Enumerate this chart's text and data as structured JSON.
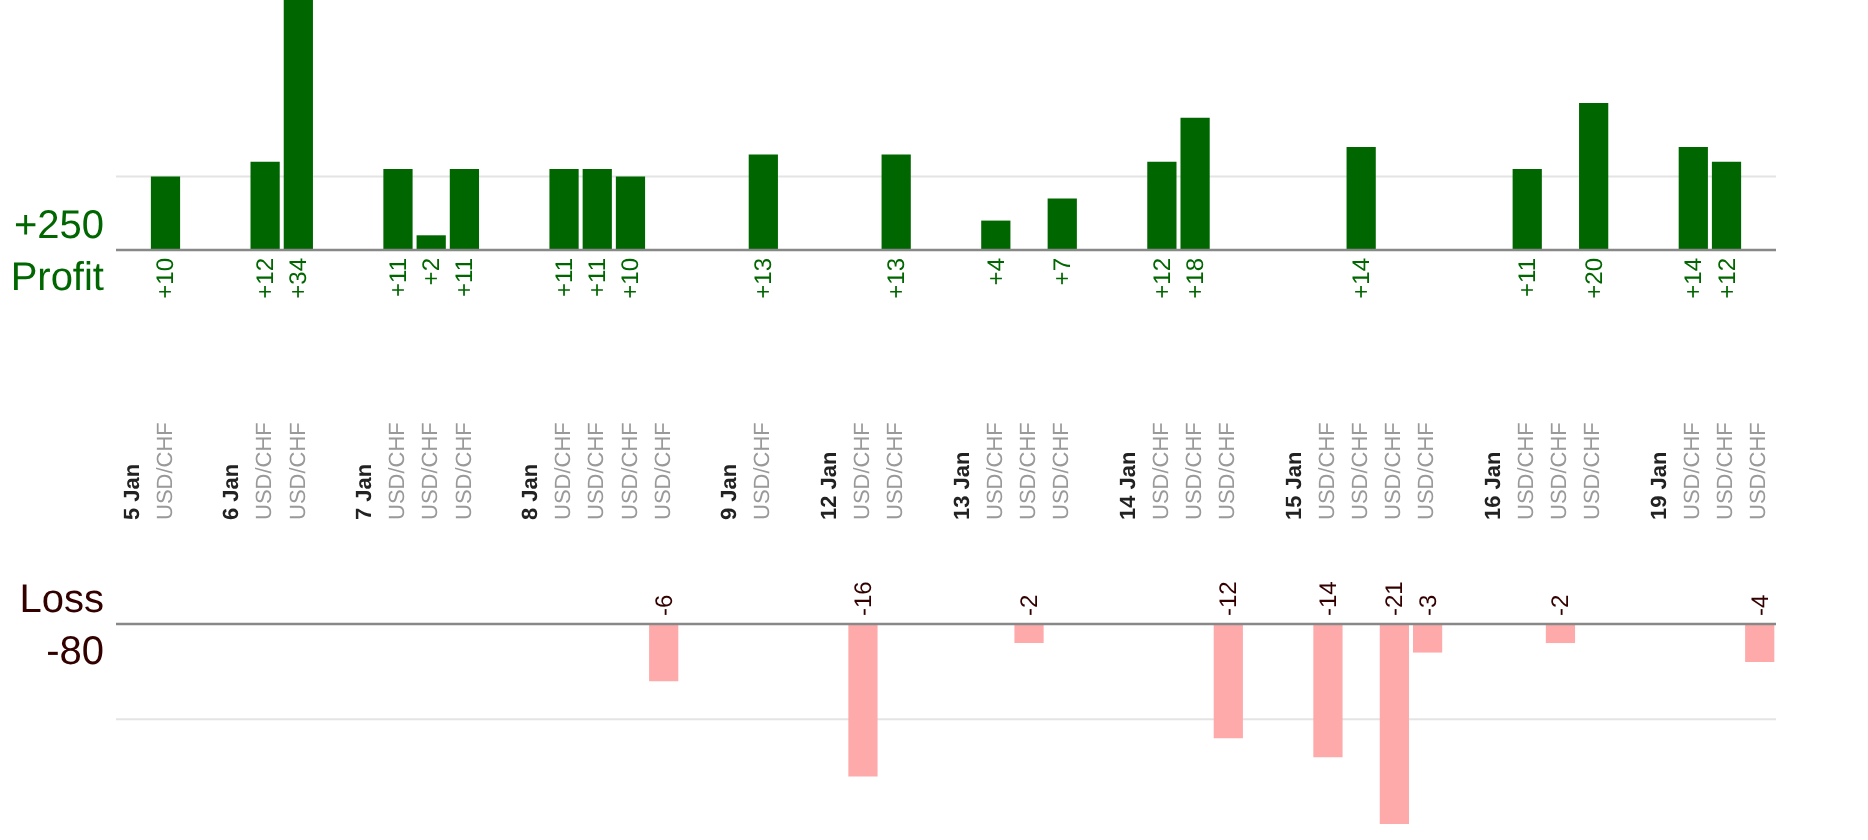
{
  "chart_data": [
    {
      "type": "bar",
      "categories": [
        "5 Jan",
        "USD/CHF",
        null,
        "6 Jan",
        "USD/CHF",
        "USD/CHF",
        null,
        "7 Jan",
        "USD/CHF",
        "USD/CHF",
        "USD/CHF",
        null,
        "8 Jan",
        "USD/CHF",
        "USD/CHF",
        "USD/CHF",
        "USD/CHF",
        null,
        "9 Jan",
        "USD/CHF",
        null,
        "12 Jan",
        "USD/CHF",
        "USD/CHF",
        null,
        "13 Jan",
        "USD/CHF",
        "USD/CHF",
        "USD/CHF",
        null,
        "14 Jan",
        "USD/CHF",
        "USD/CHF",
        "USD/CHF",
        null,
        "15 Jan",
        "USD/CHF",
        "USD/CHF",
        "USD/CHF",
        "USD/CHF",
        null,
        "16 Jan",
        "USD/CHF",
        "USD/CHF",
        "USD/CHF",
        null,
        "19 Jan",
        "USD/CHF",
        "USD/CHF",
        "USD/CHF"
      ],
      "series": [
        {
          "name": "Profit",
          "color": "#006600",
          "values": [
            null,
            10,
            null,
            null,
            12,
            34,
            null,
            null,
            11,
            2,
            11,
            null,
            null,
            11,
            11,
            10,
            null,
            null,
            null,
            13,
            null,
            null,
            null,
            13,
            null,
            null,
            4,
            null,
            7,
            null,
            null,
            12,
            18,
            null,
            null,
            null,
            null,
            14,
            null,
            null,
            null,
            null,
            11,
            null,
            20,
            null,
            null,
            14,
            12,
            null
          ],
          "value_labels": [
            null,
            "+10",
            null,
            null,
            "+12",
            "+34",
            null,
            null,
            "+11",
            "+2",
            "+11",
            null,
            null,
            "+11",
            "+11",
            "+10",
            null,
            null,
            null,
            "+13",
            null,
            null,
            null,
            "+13",
            null,
            null,
            "+4",
            null,
            "+7",
            null,
            null,
            "+12",
            "+18",
            null,
            null,
            null,
            null,
            "+14",
            null,
            null,
            null,
            null,
            "+11",
            null,
            "+20",
            null,
            null,
            "+14",
            "+12",
            null
          ]
        }
      ],
      "ylim": [
        0,
        34
      ],
      "ref_lines": [
        {
          "axis": "y",
          "value": 10,
          "color": "#e4e4e4"
        }
      ],
      "tick_labels": "x",
      "annotations": [
        "+250"
      ]
    },
    {
      "type": "bar",
      "series": [
        {
          "name": "Loss",
          "color": "#ffaaaa",
          "values": [
            null,
            null,
            null,
            null,
            null,
            null,
            null,
            null,
            null,
            null,
            null,
            null,
            null,
            null,
            null,
            null,
            -6,
            null,
            null,
            null,
            null,
            null,
            -16,
            null,
            null,
            null,
            null,
            -2,
            null,
            null,
            null,
            null,
            null,
            -12,
            null,
            null,
            -14,
            null,
            -21,
            -3,
            null,
            null,
            null,
            -2,
            null,
            null,
            null,
            null,
            null,
            -4
          ],
          "value_labels": [
            null,
            null,
            null,
            null,
            null,
            null,
            null,
            null,
            null,
            null,
            null,
            null,
            null,
            null,
            null,
            null,
            "-6",
            null,
            null,
            null,
            null,
            null,
            "-16",
            null,
            null,
            null,
            null,
            "-2",
            null,
            null,
            null,
            null,
            null,
            "-12",
            null,
            null,
            "-14",
            null,
            "-21",
            "-3",
            null,
            null,
            null,
            "-2",
            null,
            null,
            null,
            null,
            null,
            "-4"
          ]
        }
      ],
      "ylim": [
        -21,
        0
      ],
      "ref_lines": [
        {
          "axis": "y",
          "value": -10,
          "color": "#e4e4e4"
        }
      ],
      "tick_labels": false,
      "annotations": [
        "-80"
      ]
    }
  ]
}
